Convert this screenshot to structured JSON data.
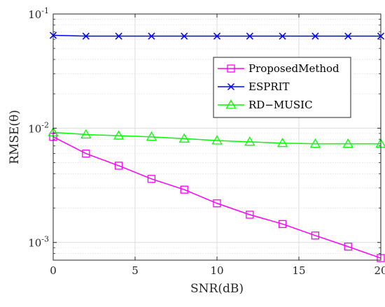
{
  "chart_data": {
    "type": "line",
    "title": "",
    "xlabel": "SNR(dB)",
    "ylabel": "RMSE(θ)",
    "xlim": [
      0,
      20
    ],
    "ylim": [
      0.0007,
      0.1
    ],
    "yscale": "log",
    "grid": true,
    "x_ticks": [
      0,
      5,
      10,
      15,
      20
    ],
    "x_tick_labels": [
      "0",
      "5",
      "10",
      "15",
      "20"
    ],
    "y_ticks": [
      0.001,
      0.01,
      0.1
    ],
    "y_tick_labels": [
      {
        "base": "10",
        "exp": "-3"
      },
      {
        "base": "10",
        "exp": "-2"
      },
      {
        "base": "10",
        "exp": "-1"
      }
    ],
    "legend_position": "top-right",
    "x": [
      0,
      2,
      4,
      6,
      8,
      10,
      12,
      14,
      16,
      18,
      20
    ],
    "series": [
      {
        "name": "ProposedMethod",
        "color": "#ff00ff",
        "marker": "square",
        "values": [
          0.0084,
          0.006,
          0.0047,
          0.0036,
          0.0029,
          0.0022,
          0.00175,
          0.00145,
          0.00115,
          0.00092,
          0.00073
        ]
      },
      {
        "name": "ESPRIT",
        "color": "#0000ff",
        "marker": "x",
        "values": [
          0.065,
          0.064,
          0.064,
          0.064,
          0.064,
          0.064,
          0.064,
          0.064,
          0.064,
          0.064,
          0.064
        ]
      },
      {
        "name": "RD−MUSIC",
        "color": "#00ff00",
        "marker": "triangle",
        "values": [
          0.0092,
          0.0088,
          0.0086,
          0.0084,
          0.0081,
          0.0078,
          0.0076,
          0.0074,
          0.0073,
          0.0073,
          0.0073
        ]
      }
    ]
  }
}
